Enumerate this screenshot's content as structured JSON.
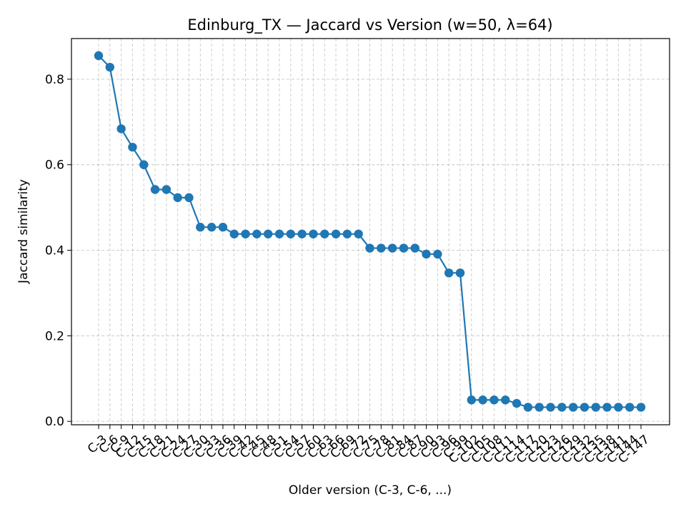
{
  "chart_data": {
    "type": "line",
    "title": "Edinburg_TX — Jaccard vs Version (w=50, λ=64)",
    "xlabel": "Older version (C-3, C-6, ...)",
    "ylabel": "Jaccard similarity",
    "ylim": [
      -0.008,
      0.895
    ],
    "yticks": [
      0.0,
      0.2,
      0.4,
      0.6,
      0.8
    ],
    "ytick_labels": [
      "0.0",
      "0.2",
      "0.4",
      "0.6",
      "0.8"
    ],
    "grid": true,
    "series_color": "#1f77b4",
    "categories": [
      "C-3",
      "C-6",
      "C-9",
      "C-12",
      "C-15",
      "C-18",
      "C-21",
      "C-24",
      "C-27",
      "C-30",
      "C-33",
      "C-36",
      "C-39",
      "C-42",
      "C-45",
      "C-48",
      "C-51",
      "C-54",
      "C-57",
      "C-60",
      "C-63",
      "C-66",
      "C-69",
      "C-72",
      "C-75",
      "C-78",
      "C-81",
      "C-84",
      "C-87",
      "C-90",
      "C-93",
      "C-96",
      "C-99",
      "C-102",
      "C-105",
      "C-108",
      "C-111",
      "C-114",
      "C-117",
      "C-120",
      "C-123",
      "C-126",
      "C-129",
      "C-132",
      "C-135",
      "C-138",
      "C-141",
      "C-144",
      "C-147"
    ],
    "values": [
      0.855,
      0.828,
      0.684,
      0.641,
      0.6,
      0.542,
      0.542,
      0.523,
      0.523,
      0.454,
      0.454,
      0.454,
      0.438,
      0.438,
      0.438,
      0.438,
      0.438,
      0.438,
      0.438,
      0.438,
      0.438,
      0.438,
      0.438,
      0.438,
      0.405,
      0.405,
      0.405,
      0.405,
      0.405,
      0.391,
      0.391,
      0.347,
      0.347,
      0.05,
      0.05,
      0.05,
      0.05,
      0.042,
      0.033,
      0.033,
      0.033,
      0.033,
      0.033,
      0.033,
      0.033,
      0.033,
      0.033,
      0.033,
      0.033
    ]
  }
}
